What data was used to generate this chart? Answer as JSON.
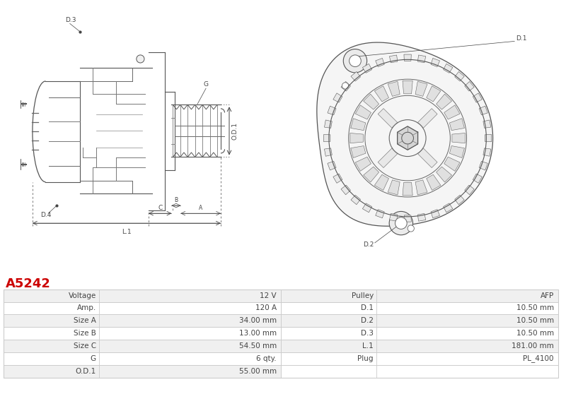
{
  "title": "A5242",
  "title_color": "#cc0000",
  "bg_color": "#ffffff",
  "table_row_bg1": "#f0f0f0",
  "table_row_bg2": "#ffffff",
  "table_border_color": "#cccccc",
  "rows": [
    [
      "Voltage",
      "12 V",
      "Pulley",
      "AFP"
    ],
    [
      "Amp.",
      "120 A",
      "D.1",
      "10.50 mm"
    ],
    [
      "Size A",
      "34.00 mm",
      "D.2",
      "10.50 mm"
    ],
    [
      "Size B",
      "13.00 mm",
      "D.3",
      "10.50 mm"
    ],
    [
      "Size C",
      "54.50 mm",
      "L.1",
      "181.00 mm"
    ],
    [
      "G",
      "6 qty.",
      "Plug",
      "PL_4100"
    ],
    [
      "O.D.1",
      "55.00 mm",
      "",
      ""
    ]
  ],
  "fig_width": 8.0,
  "fig_height": 5.58
}
